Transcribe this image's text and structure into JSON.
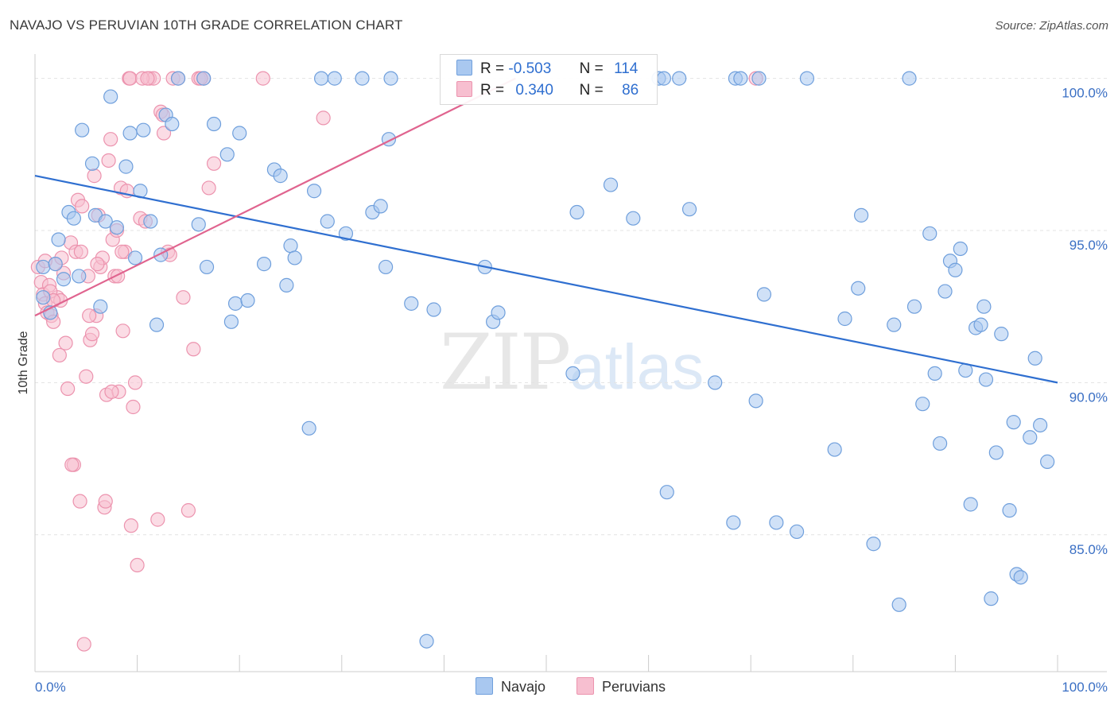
{
  "header": {
    "title": "NAVAJO VS PERUVIAN 10TH GRADE CORRELATION CHART",
    "source": "Source: ZipAtlas.com"
  },
  "watermark": {
    "zip": "ZIP",
    "atlas": "atlas"
  },
  "legend_stats": {
    "navajo": {
      "r_label": "R =",
      "r_value": "-0.503",
      "n_label": "N =",
      "n_value": "114"
    },
    "peruvians": {
      "r_label": "R =",
      "r_value": "0.340",
      "n_label": "N =",
      "n_value": "86"
    }
  },
  "colors": {
    "navajo_fill": "#a9c8f0",
    "navajo_stroke": "#6f9fdc",
    "navajo_line": "#2f6fd0",
    "peruvian_fill": "#f7bfd0",
    "peruvian_stroke": "#ec93ae",
    "peruvian_line": "#e0648f",
    "tick_label": "#3a6fc4",
    "grid": "#e3e3e3"
  },
  "chart_data": {
    "type": "scatter",
    "title": "NAVAJO VS PERUVIAN 10TH GRADE CORRELATION CHART",
    "xlabel": "",
    "ylabel": "10th Grade",
    "xlim": [
      0,
      100
    ],
    "ylim": [
      80.5,
      100.8
    ],
    "x_tick_labels": [
      "0.0%",
      "100.0%"
    ],
    "y_ticks": [
      85,
      90,
      95,
      100
    ],
    "y_tick_labels": [
      "85.0%",
      "90.0%",
      "95.0%",
      "100.0%"
    ],
    "grid": true,
    "legend": [
      "Navajo",
      "Peruvians"
    ],
    "series": [
      {
        "name": "Navajo",
        "trend": {
          "x": [
            0,
            100
          ],
          "y": [
            96.8,
            90.0
          ]
        },
        "points": [
          [
            0.8,
            93.8
          ],
          [
            0.8,
            92.8
          ],
          [
            1.5,
            92.3
          ],
          [
            2.0,
            93.9
          ],
          [
            2.3,
            94.7
          ],
          [
            2.8,
            93.4
          ],
          [
            3.3,
            95.6
          ],
          [
            3.8,
            95.4
          ],
          [
            4.3,
            93.5
          ],
          [
            4.6,
            98.3
          ],
          [
            5.6,
            97.2
          ],
          [
            5.9,
            95.5
          ],
          [
            6.4,
            92.5
          ],
          [
            6.9,
            95.3
          ],
          [
            7.4,
            99.4
          ],
          [
            8.0,
            95.1
          ],
          [
            8.9,
            97.1
          ],
          [
            9.3,
            98.2
          ],
          [
            9.8,
            94.1
          ],
          [
            10.3,
            96.3
          ],
          [
            10.6,
            98.3
          ],
          [
            11.3,
            95.3
          ],
          [
            11.9,
            91.9
          ],
          [
            12.3,
            94.2
          ],
          [
            12.8,
            98.8
          ],
          [
            13.4,
            98.5
          ],
          [
            14.0,
            100.0
          ],
          [
            16.0,
            95.2
          ],
          [
            16.5,
            100.0
          ],
          [
            16.8,
            93.8
          ],
          [
            17.5,
            98.5
          ],
          [
            18.8,
            97.5
          ],
          [
            19.2,
            92.0
          ],
          [
            19.6,
            92.6
          ],
          [
            20.0,
            98.2
          ],
          [
            20.8,
            92.7
          ],
          [
            22.4,
            93.9
          ],
          [
            23.4,
            97.0
          ],
          [
            24.0,
            96.8
          ],
          [
            24.6,
            93.2
          ],
          [
            25.0,
            94.5
          ],
          [
            25.4,
            94.1
          ],
          [
            26.8,
            88.5
          ],
          [
            27.3,
            96.3
          ],
          [
            28.0,
            100.0
          ],
          [
            28.6,
            95.3
          ],
          [
            29.3,
            100.0
          ],
          [
            30.4,
            94.9
          ],
          [
            32.0,
            100.0
          ],
          [
            33.0,
            95.6
          ],
          [
            33.8,
            95.8
          ],
          [
            34.3,
            93.8
          ],
          [
            34.6,
            98.0
          ],
          [
            34.8,
            100.0
          ],
          [
            36.8,
            92.6
          ],
          [
            38.3,
            81.5
          ],
          [
            39.0,
            92.4
          ],
          [
            44.0,
            93.8
          ],
          [
            44.8,
            92.0
          ],
          [
            45.3,
            92.3
          ],
          [
            52.6,
            90.3
          ],
          [
            53.0,
            95.6
          ],
          [
            56.3,
            96.5
          ],
          [
            58.5,
            95.4
          ],
          [
            61.0,
            100.0
          ],
          [
            61.5,
            100.0
          ],
          [
            61.8,
            86.4
          ],
          [
            63.0,
            100.0
          ],
          [
            64.0,
            95.7
          ],
          [
            66.5,
            90.0
          ],
          [
            68.3,
            85.4
          ],
          [
            68.5,
            100.0
          ],
          [
            69.0,
            100.0
          ],
          [
            70.5,
            89.4
          ],
          [
            70.8,
            100.0
          ],
          [
            71.3,
            92.9
          ],
          [
            72.5,
            85.4
          ],
          [
            74.5,
            85.1
          ],
          [
            75.5,
            100.0
          ],
          [
            78.2,
            87.8
          ],
          [
            79.2,
            92.1
          ],
          [
            80.5,
            93.1
          ],
          [
            80.8,
            95.5
          ],
          [
            82.0,
            84.7
          ],
          [
            84.0,
            91.9
          ],
          [
            84.5,
            82.7
          ],
          [
            85.5,
            100.0
          ],
          [
            86.0,
            92.5
          ],
          [
            86.8,
            89.3
          ],
          [
            87.5,
            94.9
          ],
          [
            88.0,
            90.3
          ],
          [
            88.5,
            88.0
          ],
          [
            89.0,
            93.0
          ],
          [
            89.5,
            94.0
          ],
          [
            90.0,
            93.7
          ],
          [
            90.5,
            94.4
          ],
          [
            91.0,
            90.4
          ],
          [
            91.5,
            86.0
          ],
          [
            92.0,
            91.8
          ],
          [
            92.5,
            91.9
          ],
          [
            92.8,
            92.5
          ],
          [
            93.0,
            90.1
          ],
          [
            93.5,
            82.9
          ],
          [
            94.0,
            87.7
          ],
          [
            94.5,
            91.6
          ],
          [
            95.3,
            85.8
          ],
          [
            95.7,
            88.7
          ],
          [
            96.0,
            83.7
          ],
          [
            96.4,
            83.6
          ],
          [
            97.3,
            88.2
          ],
          [
            97.8,
            90.8
          ],
          [
            98.3,
            88.6
          ],
          [
            99.0,
            87.4
          ]
        ]
      },
      {
        "name": "Peruvians",
        "trend": {
          "x": [
            0,
            47
          ],
          "y": [
            92.2,
            100.0
          ]
        },
        "points": [
          [
            0.3,
            93.8
          ],
          [
            0.6,
            93.3
          ],
          [
            0.8,
            92.9
          ],
          [
            1.0,
            92.6
          ],
          [
            1.2,
            92.3
          ],
          [
            1.4,
            93.2
          ],
          [
            1.6,
            92.2
          ],
          [
            1.8,
            92.0
          ],
          [
            2.0,
            93.9
          ],
          [
            2.2,
            92.8
          ],
          [
            2.4,
            90.9
          ],
          [
            2.6,
            94.1
          ],
          [
            2.8,
            93.6
          ],
          [
            3.0,
            91.3
          ],
          [
            3.2,
            89.8
          ],
          [
            3.5,
            94.6
          ],
          [
            3.8,
            87.3
          ],
          [
            4.0,
            94.3
          ],
          [
            4.2,
            96.0
          ],
          [
            4.4,
            86.1
          ],
          [
            4.6,
            95.8
          ],
          [
            4.8,
            81.4
          ],
          [
            5.0,
            90.2
          ],
          [
            5.2,
            93.5
          ],
          [
            5.4,
            91.4
          ],
          [
            5.6,
            91.6
          ],
          [
            5.8,
            96.8
          ],
          [
            6.0,
            92.2
          ],
          [
            6.2,
            95.5
          ],
          [
            6.4,
            93.8
          ],
          [
            6.6,
            94.1
          ],
          [
            6.8,
            85.9
          ],
          [
            7.0,
            89.6
          ],
          [
            7.2,
            97.3
          ],
          [
            7.4,
            98.0
          ],
          [
            7.6,
            94.7
          ],
          [
            7.8,
            93.5
          ],
          [
            8.0,
            95.0
          ],
          [
            8.2,
            89.7
          ],
          [
            8.4,
            96.4
          ],
          [
            8.6,
            91.7
          ],
          [
            8.8,
            94.3
          ],
          [
            9.0,
            96.3
          ],
          [
            9.2,
            100.0
          ],
          [
            9.4,
            85.3
          ],
          [
            9.6,
            89.2
          ],
          [
            9.8,
            90.0
          ],
          [
            10.0,
            84.0
          ],
          [
            10.3,
            95.4
          ],
          [
            10.8,
            95.3
          ],
          [
            11.2,
            100.0
          ],
          [
            11.6,
            100.0
          ],
          [
            12.0,
            85.5
          ],
          [
            12.3,
            98.9
          ],
          [
            12.6,
            98.2
          ],
          [
            13.0,
            94.3
          ],
          [
            13.5,
            100.0
          ],
          [
            14.0,
            100.0
          ],
          [
            14.5,
            92.8
          ],
          [
            15.0,
            85.8
          ],
          [
            15.5,
            91.1
          ],
          [
            16.0,
            100.0
          ],
          [
            16.5,
            100.0
          ],
          [
            17.0,
            96.4
          ],
          [
            17.5,
            97.2
          ],
          [
            22.3,
            100.0
          ],
          [
            28.2,
            98.7
          ],
          [
            70.5,
            100.0
          ],
          [
            1.0,
            94.0
          ],
          [
            1.5,
            93.0
          ],
          [
            2.5,
            92.7
          ],
          [
            3.6,
            87.3
          ],
          [
            4.5,
            94.3
          ],
          [
            5.3,
            92.2
          ],
          [
            6.1,
            93.9
          ],
          [
            6.9,
            86.1
          ],
          [
            7.5,
            89.7
          ],
          [
            8.1,
            93.5
          ],
          [
            8.5,
            94.3
          ],
          [
            9.3,
            100.0
          ],
          [
            10.5,
            100.0
          ],
          [
            11.0,
            100.0
          ],
          [
            12.5,
            98.8
          ],
          [
            13.2,
            94.2
          ],
          [
            16.2,
            100.0
          ],
          [
            1.8,
            92.7
          ]
        ]
      }
    ]
  },
  "bottom_legend": {
    "navajo": "Navajo",
    "peruvians": "Peruvians"
  }
}
